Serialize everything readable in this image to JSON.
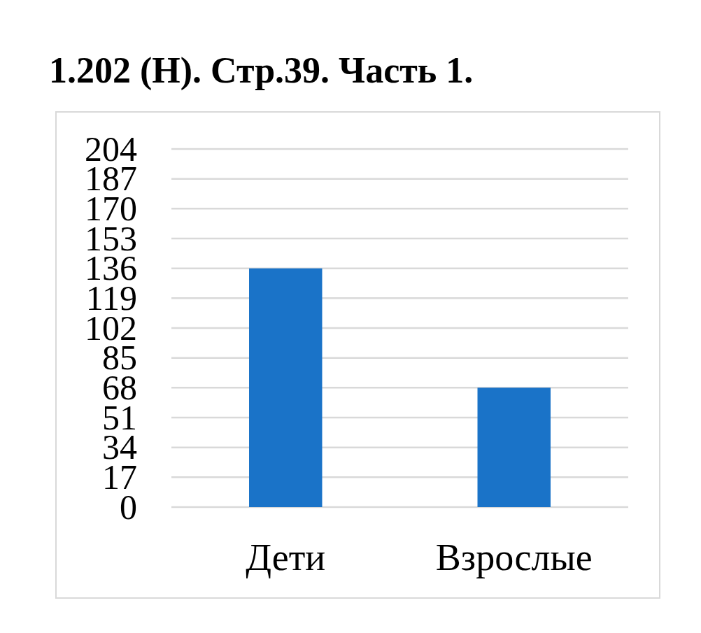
{
  "chart_data": {
    "type": "bar",
    "title": "1.202 (Н). Стр.39. Часть 1.",
    "categories": [
      "Дети",
      "Взрослые"
    ],
    "values": [
      136,
      68
    ],
    "color": "#1a73c8",
    "ylim": [
      0,
      204
    ],
    "yticks": [
      0,
      17,
      34,
      51,
      68,
      85,
      102,
      119,
      136,
      153,
      170,
      187,
      204
    ],
    "grid": "y"
  }
}
